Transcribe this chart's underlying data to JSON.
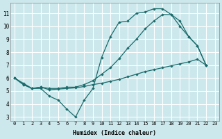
{
  "xlabel": "Humidex (Indice chaleur)",
  "xlim": [
    -0.5,
    23.5
  ],
  "ylim": [
    2.7,
    11.8
  ],
  "xticks": [
    0,
    1,
    2,
    3,
    4,
    5,
    6,
    7,
    8,
    9,
    10,
    11,
    12,
    13,
    14,
    15,
    16,
    17,
    18,
    19,
    20,
    21,
    22,
    23
  ],
  "yticks": [
    3,
    4,
    5,
    6,
    7,
    8,
    9,
    10,
    11
  ],
  "bg_color": "#cce8ec",
  "grid_color": "#ffffff",
  "line_color": "#1a6b6b",
  "line1_x": [
    0,
    1,
    2,
    3,
    4,
    5,
    6,
    7,
    8,
    9,
    10,
    11,
    12,
    13,
    14,
    15,
    16,
    17,
    18,
    19,
    20,
    21,
    22,
    23
  ],
  "line1_y": [
    6.0,
    5.6,
    5.2,
    5.2,
    4.6,
    4.3,
    3.6,
    3.0,
    4.3,
    5.2,
    7.6,
    9.2,
    10.3,
    10.4,
    11.0,
    11.1,
    11.35,
    11.35,
    10.9,
    10.0,
    9.2,
    8.5,
    7.0,
    null
  ],
  "line2_x": [
    0,
    1,
    2,
    3,
    4,
    5,
    6,
    7,
    8,
    9,
    10,
    11,
    12,
    13,
    14,
    15,
    16,
    17,
    18,
    19,
    20,
    21,
    22,
    23
  ],
  "line2_y": [
    6.0,
    5.5,
    5.2,
    5.3,
    5.2,
    5.2,
    5.3,
    5.3,
    5.5,
    5.8,
    6.3,
    6.8,
    7.5,
    8.3,
    9.0,
    9.8,
    10.4,
    10.9,
    10.9,
    10.4,
    9.2,
    8.5,
    7.0,
    null
  ],
  "line3_x": [
    0,
    1,
    2,
    3,
    4,
    5,
    6,
    7,
    8,
    9,
    10,
    11,
    12,
    13,
    14,
    15,
    16,
    17,
    18,
    19,
    20,
    21,
    22,
    23
  ],
  "line3_y": [
    6.0,
    5.5,
    5.2,
    5.3,
    5.1,
    5.15,
    5.2,
    5.25,
    5.35,
    5.5,
    5.6,
    5.75,
    5.9,
    6.1,
    6.3,
    6.5,
    6.65,
    6.8,
    6.95,
    7.1,
    7.25,
    7.45,
    7.0,
    null
  ],
  "font_family": "monospace"
}
